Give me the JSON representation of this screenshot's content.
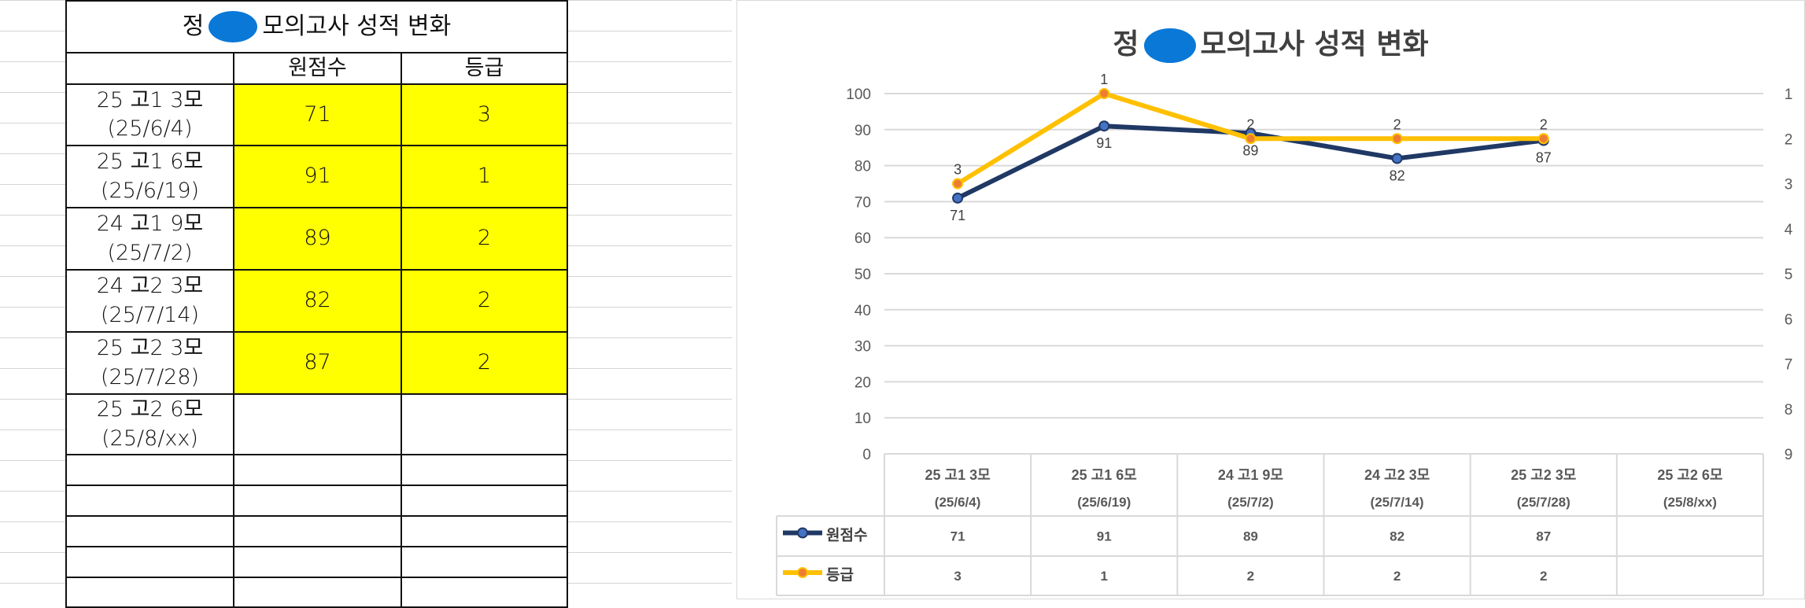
{
  "sheet": {
    "title_prefix": "정",
    "title_suffix": "모의고사 성적 변화",
    "headers": [
      "",
      "원점수",
      "등급"
    ],
    "rows": [
      {
        "exam": "25 고1 3모",
        "date": "(25/6/4)",
        "score": "71",
        "grade": "3"
      },
      {
        "exam": "25 고1 6모",
        "date": "(25/6/19)",
        "score": "91",
        "grade": "1"
      },
      {
        "exam": "24 고1 9모",
        "date": "(25/7/2)",
        "score": "89",
        "grade": "2"
      },
      {
        "exam": "24 고2 3모",
        "date": "(25/7/14)",
        "score": "82",
        "grade": "2"
      },
      {
        "exam": "25 고2 3모",
        "date": "(25/7/28)",
        "score": "87",
        "grade": "2"
      },
      {
        "exam": "25 고2 6모",
        "date": "(25/8/xx)",
        "score": "",
        "grade": ""
      }
    ],
    "highlight_color": "#ffff00"
  },
  "chart_data": {
    "type": "line",
    "title_prefix": "정",
    "title_suffix": "모의고사 성적 변화",
    "categories": [
      "25 고1 3모\n(25/6/4)",
      "25 고1 6모\n(25/6/19)",
      "24 고1 9모\n(25/7/2)",
      "24 고2 3모\n(25/7/14)",
      "25 고2 3모\n(25/7/28)",
      "25 고2 6모\n(25/8/xx)"
    ],
    "ylim": [
      0,
      100
    ],
    "yticks": [
      0,
      10,
      20,
      30,
      40,
      50,
      60,
      70,
      80,
      90,
      100
    ],
    "y2lim": [
      1,
      9
    ],
    "y2_reversed": true,
    "y2ticks": [
      1,
      2,
      3,
      4,
      5,
      6,
      7,
      8,
      9
    ],
    "grid": true,
    "legend": "data-table",
    "series": [
      {
        "name": "원점수",
        "axis": "left",
        "color": "#203864",
        "values": [
          71,
          91,
          89,
          82,
          87,
          null
        ]
      },
      {
        "name": "등급",
        "axis": "right",
        "color": "#ffc000",
        "values": [
          3,
          1,
          2,
          2,
          2,
          null
        ]
      }
    ]
  }
}
